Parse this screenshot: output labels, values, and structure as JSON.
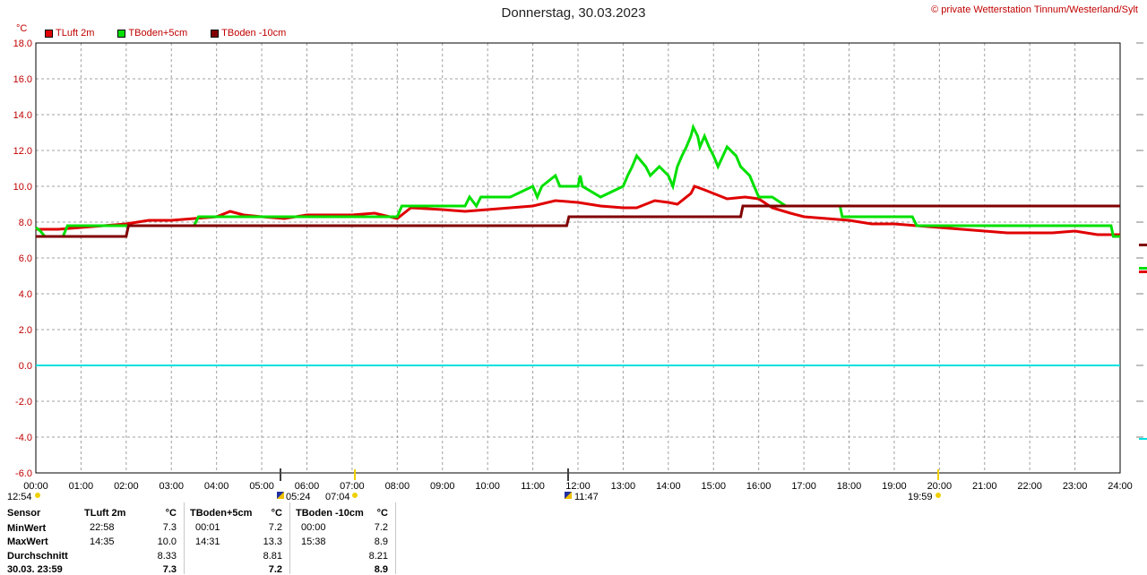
{
  "header": {
    "title": "Donnerstag, 30.03.2023",
    "copyright": "© private Wetterstation Tinnum/Westerland/Sylt",
    "unit": "°C"
  },
  "legend": [
    {
      "label": "TLuft 2m",
      "color": "#e00000"
    },
    {
      "label": "TBoden+5cm",
      "color": "#00e000"
    },
    {
      "label": "TBoden -10cm",
      "color": "#800000"
    }
  ],
  "chart_data": {
    "type": "line",
    "title": "Donnerstag, 30.03.2023",
    "ylabel": "°C",
    "ylim": [
      -6,
      18
    ],
    "xlim": [
      0,
      24
    ],
    "y_ticks": [
      "18.0",
      "16.0",
      "14.0",
      "12.0",
      "10.0",
      "8.0",
      "6.0",
      "4.0",
      "2.0",
      "0.0",
      "-2.0",
      "-4.0",
      "-6.0"
    ],
    "x_ticks": [
      "00:00",
      "01:00",
      "02:00",
      "03:00",
      "04:00",
      "05:00",
      "06:00",
      "07:00",
      "08:00",
      "09:00",
      "10:00",
      "11:00",
      "12:00",
      "13:00",
      "14:00",
      "15:00",
      "16:00",
      "17:00",
      "18:00",
      "19:00",
      "20:00",
      "21:00",
      "22:00",
      "23:00",
      "24:00"
    ],
    "grid": true,
    "reference_line": {
      "y": 0,
      "color": "#00e0e0"
    },
    "series": [
      {
        "name": "TLuft 2m",
        "color": "#e00000",
        "x": [
          0,
          0.5,
          1,
          1.5,
          2,
          2.5,
          3,
          3.5,
          4,
          4.3,
          4.6,
          5,
          5.5,
          6,
          6.5,
          7,
          7.5,
          8,
          8.3,
          9,
          9.5,
          10,
          10.5,
          11,
          11.5,
          12,
          12.5,
          13,
          13.3,
          13.7,
          14,
          14.2,
          14.5,
          14.58,
          14.8,
          15,
          15.3,
          15.7,
          16,
          16.3,
          16.7,
          17,
          17.5,
          18,
          18.5,
          19,
          19.5,
          20,
          20.5,
          21,
          21.5,
          22,
          22.5,
          23,
          23.5,
          24
        ],
        "values": [
          7.6,
          7.6,
          7.7,
          7.8,
          7.9,
          8.1,
          8.1,
          8.2,
          8.3,
          8.6,
          8.4,
          8.3,
          8.2,
          8.4,
          8.4,
          8.4,
          8.5,
          8.2,
          8.8,
          8.7,
          8.6,
          8.7,
          8.8,
          8.9,
          9.2,
          9.1,
          8.9,
          8.8,
          8.8,
          9.2,
          9.1,
          9.0,
          9.6,
          10.0,
          9.8,
          9.6,
          9.3,
          9.4,
          9.3,
          8.8,
          8.5,
          8.3,
          8.2,
          8.1,
          7.9,
          7.9,
          7.8,
          7.7,
          7.6,
          7.5,
          7.4,
          7.4,
          7.4,
          7.5,
          7.3,
          7.3
        ]
      },
      {
        "name": "TBoden+5cm",
        "color": "#00e000",
        "x": [
          0,
          0.1,
          0.2,
          0.6,
          0.7,
          1.0,
          1.5,
          2.0,
          3.5,
          3.6,
          4.0,
          5.0,
          6.0,
          7.0,
          8.0,
          8.1,
          8.5,
          9.0,
          9.5,
          9.6,
          9.75,
          9.85,
          10.0,
          10.3,
          10.5,
          11.0,
          11.1,
          11.2,
          11.5,
          11.6,
          12.0,
          12.05,
          12.1,
          12.5,
          13.0,
          13.1,
          13.2,
          13.3,
          13.5,
          13.6,
          13.8,
          14.0,
          14.1,
          14.2,
          14.3,
          14.4,
          14.5,
          14.55,
          14.65,
          14.7,
          14.8,
          14.9,
          15.0,
          15.1,
          15.3,
          15.5,
          15.6,
          15.8,
          15.9,
          16.0,
          16.3,
          16.6,
          16.7,
          17.0,
          17.5,
          17.8,
          17.85,
          18.0,
          18.5,
          19.0,
          19.4,
          19.5,
          20.0,
          21.0,
          22.0,
          23.0,
          23.8,
          23.85,
          24.0
        ],
        "values": [
          7.7,
          7.5,
          7.2,
          7.2,
          7.8,
          7.8,
          7.8,
          7.8,
          7.8,
          8.3,
          8.3,
          8.3,
          8.3,
          8.3,
          8.3,
          8.9,
          8.9,
          8.9,
          8.9,
          9.4,
          8.9,
          9.4,
          9.4,
          9.4,
          9.4,
          10.0,
          9.4,
          10.0,
          10.6,
          10.0,
          10.0,
          10.6,
          10.0,
          9.4,
          10.0,
          10.6,
          11.1,
          11.7,
          11.1,
          10.6,
          11.1,
          10.6,
          10.0,
          11.1,
          11.7,
          12.2,
          12.8,
          13.3,
          12.8,
          12.2,
          12.8,
          12.2,
          11.7,
          11.1,
          12.2,
          11.7,
          11.1,
          10.6,
          10.0,
          9.4,
          9.4,
          8.9,
          8.9,
          8.9,
          8.9,
          8.9,
          8.3,
          8.3,
          8.3,
          8.3,
          8.3,
          7.8,
          7.8,
          7.8,
          7.8,
          7.8,
          7.8,
          7.2,
          7.2
        ]
      },
      {
        "name": "TBoden -10cm",
        "color": "#800000",
        "x": [
          0,
          0.3,
          0.6,
          1.0,
          1.5,
          2.0,
          2.05,
          2.25,
          2.3,
          3.0,
          4.0,
          5.0,
          6.0,
          7.0,
          8.0,
          9.0,
          10.0,
          11.0,
          11.75,
          11.8,
          13.0,
          14.0,
          15.0,
          15.6,
          15.65,
          16.0,
          17.0,
          18.0,
          19.0,
          20.0,
          21.0,
          22.0,
          23.0,
          24.0
        ],
        "values": [
          7.2,
          7.2,
          7.2,
          7.2,
          7.2,
          7.2,
          7.8,
          7.8,
          7.8,
          7.8,
          7.8,
          7.8,
          7.8,
          7.8,
          7.8,
          7.8,
          7.8,
          7.8,
          7.8,
          8.3,
          8.3,
          8.3,
          8.3,
          8.3,
          8.9,
          8.9,
          8.9,
          8.9,
          8.9,
          8.9,
          8.9,
          8.9,
          8.9,
          8.9
        ]
      }
    ]
  },
  "sun_markers": [
    {
      "label": "12:54"
    },
    {
      "label": "05:24"
    },
    {
      "label": "07:04"
    },
    {
      "label": "11:47"
    },
    {
      "label": "19:59"
    }
  ],
  "stats": {
    "headers": {
      "sensor": "Sensor",
      "s1": "TLuft 2m",
      "u1": "°C",
      "s2": "TBoden+5cm",
      "u2": "°C",
      "s3": "TBoden -10cm",
      "u3": "°C"
    },
    "rows": [
      {
        "label": "MinWert",
        "t1": "22:58",
        "v1": "7.3",
        "t2": "00:01",
        "v2": "7.2",
        "t3": "00:00",
        "v3": "7.2"
      },
      {
        "label": "MaxWert",
        "t1": "14:35",
        "v1": "10.0",
        "t2": "14:31",
        "v2": "13.3",
        "t3": "15:38",
        "v3": "8.9"
      },
      {
        "label": "Durchschnitt",
        "t1": "",
        "v1": "8.33",
        "t2": "",
        "v2": "8.81",
        "t3": "",
        "v3": "8.21"
      },
      {
        "label": "30.03. 23:59",
        "t1": "",
        "v1": "7.3",
        "t2": "",
        "v2": "7.2",
        "t3": "",
        "v3": "8.9"
      }
    ]
  }
}
